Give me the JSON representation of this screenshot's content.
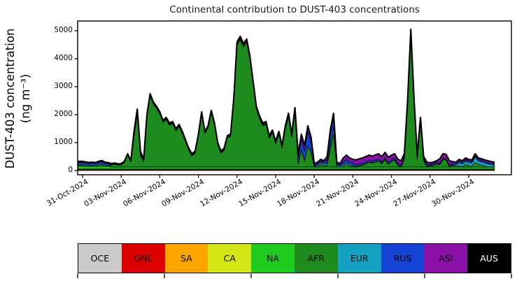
{
  "figure": {
    "title": "Continental contribution to DUST-403 concentrations",
    "ylabel_line1": "DUST-403 concentration",
    "ylabel_line2": "(ng m⁻³)",
    "background": "#ffffff"
  },
  "chart_data": {
    "type": "area",
    "stacked": true,
    "title": "Continental contribution to DUST-403 concentrations",
    "xlabel": "",
    "ylabel": "DUST-403 concentration (ng m⁻³)",
    "yticks": [
      0,
      1000,
      2000,
      3000,
      4000,
      5000
    ],
    "ylim": [
      0,
      5350
    ],
    "grid": false,
    "total_line_color": "#000000",
    "layer_edge_color": "#000000",
    "xtick_labels": [
      "31-Oct-2024",
      "03-Nov-2024",
      "06-Nov-2024",
      "09-Nov-2024",
      "12-Nov-2024",
      "15-Nov-2024",
      "18-Nov-2024",
      "21-Nov-2024",
      "24-Nov-2024",
      "27-Nov-2024",
      "30-Nov-2024"
    ],
    "xtick_days": [
      0,
      3,
      6,
      9,
      12,
      15,
      18,
      21,
      24,
      27,
      30
    ],
    "x_unit": "days since 31-Oct-2024",
    "x_start": 0,
    "x_step": 0.25,
    "n_points": 129,
    "legend_position": "bottom strip",
    "legend_tick_cells": [
      0,
      2,
      4,
      6,
      8,
      10
    ],
    "series": [
      {
        "name": "OCE",
        "color": "#cbcbcb",
        "label_color": "#000000",
        "constant": 6
      },
      {
        "name": "GNL",
        "color": "#dd0000",
        "label_color": "#000000",
        "constant": 3
      },
      {
        "name": "SA",
        "color": "#ffa500",
        "label_color": "#000000",
        "constant": 25
      },
      {
        "name": "CA",
        "color": "#d4e615",
        "label_color": "#000000",
        "constant": 20
      },
      {
        "name": "NA",
        "color": "#1ecb1e",
        "label_color": "#000000",
        "values": [
          90,
          90,
          90,
          90,
          90,
          90,
          90,
          90,
          90,
          70,
          70,
          70,
          70,
          70,
          70,
          70,
          70,
          70,
          70,
          70,
          70,
          70,
          70,
          70,
          70,
          70,
          70,
          70,
          70,
          70,
          70,
          70,
          70,
          70,
          70,
          70,
          70,
          70,
          70,
          70,
          70,
          70,
          70,
          70,
          70,
          70,
          70,
          70,
          70,
          70,
          70,
          70,
          70,
          70,
          70,
          70,
          70,
          70,
          70,
          70,
          70,
          70,
          70,
          70,
          70,
          70,
          70,
          70,
          70,
          70,
          70,
          70,
          70,
          70,
          70,
          70,
          70,
          70,
          70,
          70,
          70,
          70,
          70,
          70,
          70,
          70,
          70,
          70,
          70,
          70,
          70,
          70,
          70,
          70,
          70,
          70,
          70,
          70,
          70,
          70,
          70,
          70,
          70,
          70,
          70,
          70,
          70,
          70,
          70,
          70,
          70,
          70,
          70,
          70,
          70,
          70,
          70,
          70,
          70,
          70,
          70,
          70,
          70,
          70,
          70,
          70,
          70,
          70,
          70
        ]
      },
      {
        "name": "AFR",
        "color": "#1e8b1e",
        "label_color": "#000000",
        "values": [
          44,
          24,
          4,
          14,
          0,
          44,
          74,
          14,
          0,
          79,
          99,
          69,
          79,
          159,
          429,
          179,
          1094,
          1894,
          394,
          199,
          1799,
          2549,
          2249,
          2099,
          1899,
          1599,
          1699,
          1499,
          1549,
          1299,
          1449,
          1199,
          899,
          599,
          399,
          499,
          1099,
          1899,
          1199,
          1399,
          1949,
          1499,
          799,
          499,
          599,
          1049,
          1099,
          2359,
          4359,
          4559,
          4309,
          4459,
          3859,
          2979,
          2079,
          1729,
          1479,
          1529,
          1029,
          1229,
          829,
          1179,
          679,
          1359,
          1809,
          1059,
          2009,
          110,
          614,
          214,
          764,
          514,
          14,
          4,
          104,
          54,
          54,
          674,
          1174,
          14,
          4,
          24,
          124,
          24,
          34,
          0,
          39,
          69,
          119,
          169,
          139,
          179,
          219,
          119,
          269,
          99,
          199,
          249,
          49,
          0,
          299,
          2199,
          4749,
          2299,
          269,
          1619,
          219,
          19,
          39,
          59,
          109,
          89,
          269,
          249,
          19,
          69,
          4,
          54,
          4,
          104,
          54,
          34,
          164,
          104,
          74,
          34,
          4,
          4,
          14
        ]
      },
      {
        "name": "EUR",
        "color": "#14a2c0",
        "label_color": "#000000",
        "values": [
          40,
          40,
          40,
          40,
          40,
          40,
          40,
          40,
          40,
          10,
          10,
          10,
          10,
          10,
          10,
          10,
          10,
          10,
          10,
          10,
          10,
          10,
          10,
          10,
          10,
          10,
          10,
          10,
          10,
          10,
          10,
          10,
          10,
          10,
          10,
          10,
          10,
          10,
          10,
          10,
          10,
          10,
          10,
          10,
          10,
          10,
          10,
          10,
          10,
          10,
          10,
          10,
          10,
          10,
          10,
          10,
          10,
          10,
          10,
          10,
          10,
          10,
          10,
          10,
          10,
          10,
          10,
          10,
          10,
          10,
          10,
          10,
          10,
          60,
          60,
          60,
          80,
          100,
          250,
          60,
          40,
          60,
          60,
          60,
          40,
          15,
          15,
          15,
          15,
          15,
          15,
          15,
          15,
          15,
          15,
          15,
          15,
          15,
          15,
          15,
          15,
          15,
          15,
          15,
          15,
          15,
          15,
          15,
          15,
          15,
          15,
          15,
          15,
          15,
          15,
          15,
          60,
          110,
          110,
          110,
          110,
          110,
          200,
          110,
          110,
          110,
          110,
          80,
          60
        ]
      },
      {
        "name": "RUS",
        "color": "#1543d6",
        "label_color": "#000000",
        "values": [
          60,
          60,
          60,
          60,
          60,
          60,
          60,
          60,
          60,
          15,
          15,
          15,
          15,
          15,
          15,
          15,
          90,
          90,
          90,
          25,
          25,
          25,
          25,
          25,
          25,
          25,
          25,
          25,
          25,
          25,
          25,
          25,
          25,
          25,
          25,
          25,
          25,
          25,
          25,
          25,
          25,
          25,
          25,
          25,
          25,
          25,
          25,
          25,
          25,
          25,
          25,
          25,
          25,
          25,
          25,
          25,
          25,
          25,
          25,
          25,
          25,
          25,
          25,
          25,
          25,
          25,
          25,
          200,
          350,
          350,
          500,
          350,
          50,
          50,
          50,
          50,
          120,
          350,
          350,
          40,
          30,
          100,
          100,
          100,
          80,
          60,
          60,
          60,
          60,
          60,
          60,
          60,
          60,
          60,
          60,
          60,
          60,
          60,
          60,
          60,
          60,
          60,
          60,
          60,
          60,
          60,
          60,
          60,
          40,
          40,
          40,
          40,
          40,
          40,
          40,
          40,
          50,
          50,
          50,
          50,
          50,
          50,
          50,
          50,
          50,
          50,
          50,
          50,
          50
        ]
      },
      {
        "name": "ASI",
        "color": "#8b10a8",
        "label_color": "#000000",
        "values": [
          40,
          40,
          40,
          40,
          40,
          40,
          40,
          40,
          40,
          20,
          20,
          20,
          20,
          20,
          20,
          20,
          80,
          80,
          80,
          40,
          40,
          40,
          40,
          40,
          40,
          40,
          40,
          40,
          40,
          40,
          40,
          40,
          40,
          40,
          40,
          40,
          40,
          40,
          40,
          40,
          40,
          40,
          40,
          40,
          40,
          40,
          40,
          80,
          80,
          80,
          80,
          80,
          80,
          60,
          60,
          60,
          60,
          60,
          60,
          60,
          60,
          60,
          60,
          80,
          80,
          80,
          80,
          150,
          200,
          200,
          200,
          200,
          50,
          60,
          60,
          60,
          120,
          200,
          150,
          60,
          50,
          140,
          140,
          140,
          120,
          180,
          180,
          180,
          180,
          180,
          180,
          180,
          180,
          180,
          180,
          180,
          150,
          150,
          150,
          150,
          100,
          100,
          100,
          100,
          80,
          80,
          80,
          80,
          60,
          60,
          60,
          150,
          150,
          150,
          150,
          70,
          60,
          60,
          60,
          60,
          60,
          60,
          60,
          60,
          60,
          60,
          60,
          60,
          50
        ]
      },
      {
        "name": "AUS",
        "color": "#000000",
        "label_color": "#ffffff",
        "constant": 2
      }
    ]
  }
}
